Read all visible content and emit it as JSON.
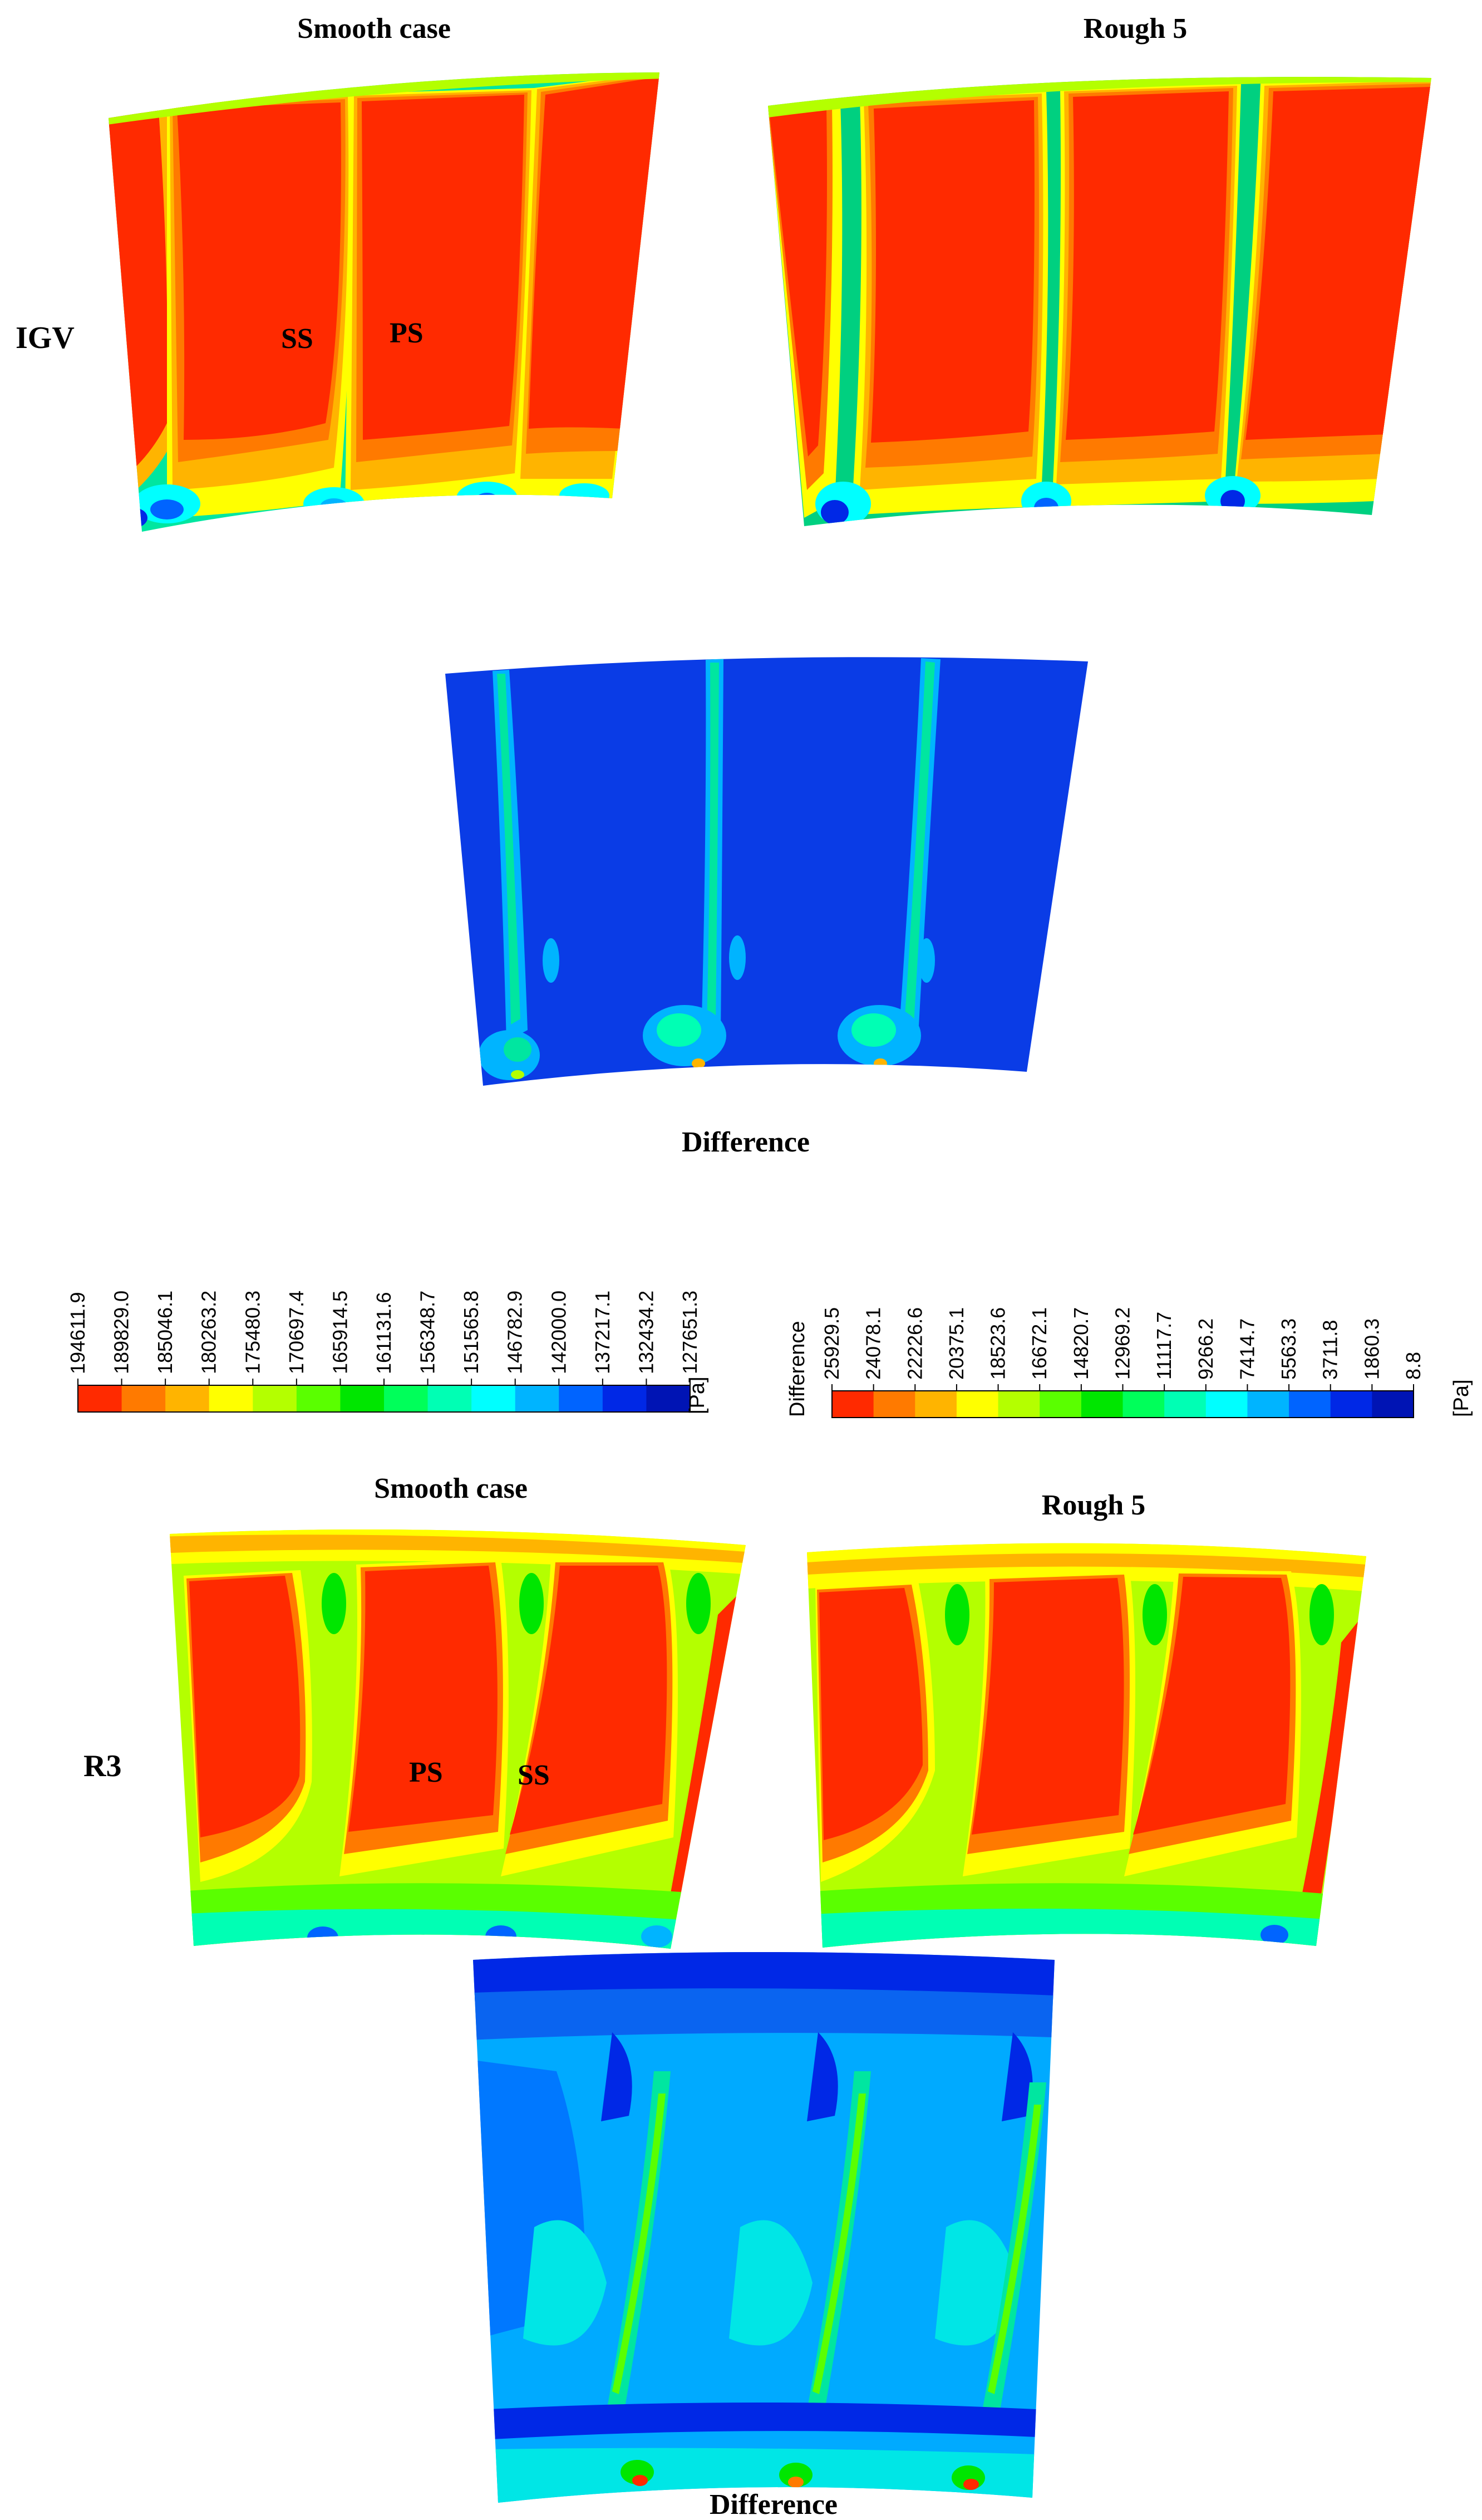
{
  "colors": {
    "contour": [
      "#ff2a00",
      "#ff7a00",
      "#ffb400",
      "#ffff00",
      "#b4ff00",
      "#5aff00",
      "#00e600",
      "#00ff5a",
      "#00ffb4",
      "#00ffff",
      "#00b4ff",
      "#0064ff",
      "#0028e6",
      "#0014b4"
    ],
    "difference_bg": "#0a3ce6",
    "difference_mid": "#00aaff",
    "difference_light": "#00e6e6"
  },
  "igv": {
    "row_label": "IGV",
    "smooth_title": "Smooth case",
    "rough_title": "Rough 5",
    "label_ss": "SS",
    "label_ps": "PS",
    "difference_title": "Difference"
  },
  "r3": {
    "row_label": "R3",
    "smooth_title": "Smooth case",
    "rough_title": "Rough 5",
    "label_ps": "PS",
    "label_ss": "SS",
    "difference_title": "Difference"
  },
  "pressure_legend": {
    "values": [
      "194611.9",
      "189829.0",
      "185046.1",
      "180263.2",
      "175480.3",
      "170697.4",
      "165914.5",
      "161131.6",
      "156348.7",
      "151565.8",
      "146782.9",
      "142000.0",
      "137217.1",
      "132434.2",
      "127651.3"
    ],
    "unit": "[Pa]"
  },
  "difference_legend": {
    "title": "Difference",
    "values": [
      "25929.5",
      "24078.1",
      "22226.6",
      "20375.1",
      "18523.6",
      "16672.1",
      "14820.7",
      "12969.2",
      "11117.7",
      "9266.2",
      "7414.7",
      "5563.3",
      "3711.8",
      "1860.3",
      "8.8"
    ],
    "unit": "[Pa]"
  }
}
